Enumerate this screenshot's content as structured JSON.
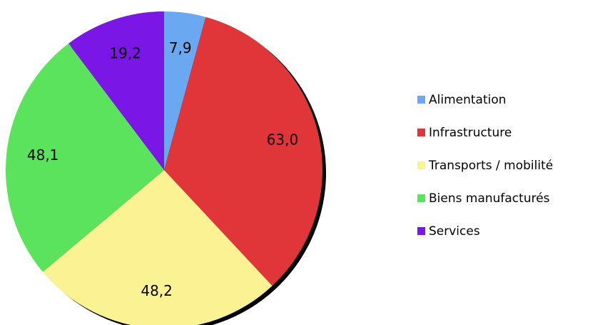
{
  "chart_data": {
    "type": "pie",
    "categories": [
      "Alimentation",
      "Infrastructure",
      "Transports / mobilité",
      "Biens manufacturés",
      "Services"
    ],
    "values": [
      7.9,
      63.0,
      48.2,
      48.1,
      19.2
    ],
    "value_labels": [
      "7,9",
      "63,0",
      "48,2",
      "48,1",
      "19,2"
    ],
    "colors": [
      "#6aa8f2",
      "#e0363a",
      "#fbf293",
      "#5be35d",
      "#7a17e6"
    ],
    "legend": "right"
  }
}
